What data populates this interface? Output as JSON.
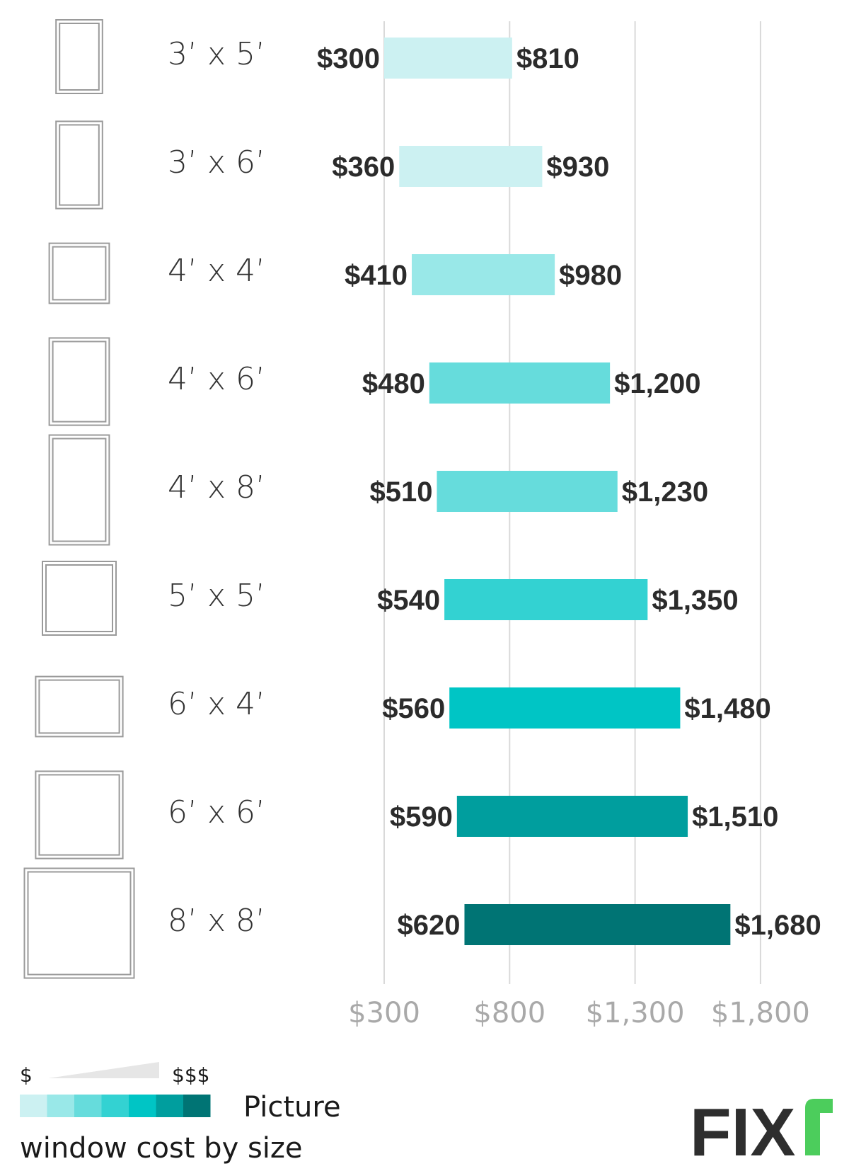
{
  "chart_data": {
    "type": "bar",
    "orientation": "horizontal-range",
    "title": "Picture window cost by size",
    "categories": [
      "3’ x 5’",
      "3’ x 6’",
      "4’ x 4’",
      "4’ x 6’",
      "4’ x 8’",
      "5’ x 5’",
      "6’ x 4’",
      "6’ x 6’",
      "8’ x 8’"
    ],
    "low": [
      300,
      360,
      410,
      480,
      510,
      540,
      560,
      590,
      620
    ],
    "high": [
      810,
      930,
      980,
      1200,
      1230,
      1350,
      1480,
      1510,
      1680
    ],
    "low_labels": [
      "$300",
      "$360",
      "$410",
      "$480",
      "$510",
      "$540",
      "$560",
      "$590",
      "$620"
    ],
    "high_labels": [
      "$810",
      "$930",
      "$980",
      "$1,200",
      "$1,230",
      "$1,350",
      "$1,480",
      "$1,510",
      "$1,680"
    ],
    "bar_colors": [
      "#ccf1f2",
      "#ccf1f2",
      "#99e8e8",
      "#66dcdc",
      "#66dcdc",
      "#33d2d2",
      "#00c5c5",
      "#009e9e",
      "#007474"
    ],
    "window_shapes": [
      [
        3,
        5
      ],
      [
        3,
        6
      ],
      [
        4,
        4
      ],
      [
        4,
        6
      ],
      [
        4,
        8
      ],
      [
        5,
        5
      ],
      [
        6,
        4
      ],
      [
        6,
        6
      ],
      [
        8,
        8
      ]
    ],
    "xlim": [
      300,
      1800
    ],
    "x_ticks": [
      300,
      800,
      1300,
      1800
    ],
    "x_tick_labels": [
      "$300",
      "$800",
      "$1,300",
      "$1,800"
    ],
    "grid": true
  },
  "legend": {
    "low_symbol": "$",
    "high_symbol": "$$$",
    "swatches": [
      "#ccf1f2",
      "#99e8e8",
      "#66dcdc",
      "#33d2d2",
      "#00c5c5",
      "#009e9e",
      "#007474"
    ],
    "caption_line1": "Picture",
    "caption_line2": "window cost by size"
  },
  "logo": {
    "text": "FIX",
    "accent_color": "#4ccd5c"
  }
}
